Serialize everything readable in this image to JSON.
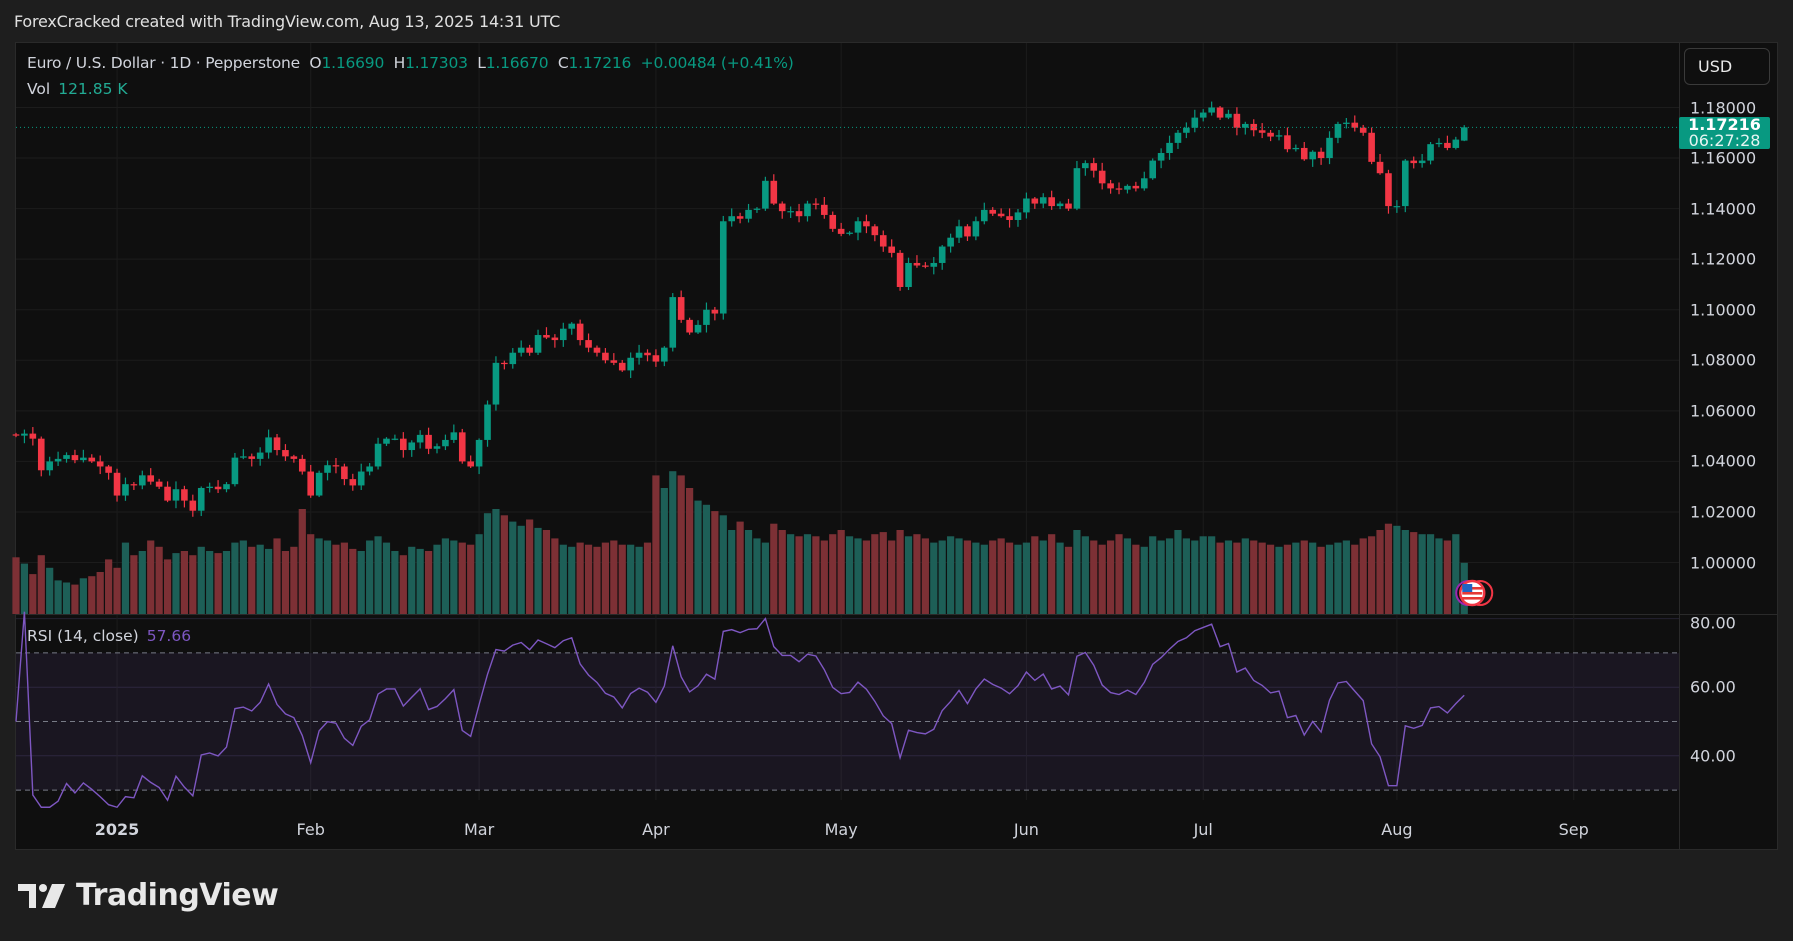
{
  "header": {
    "title": "ForexCracked created with TradingView.com, Aug 13, 2025 14:31 UTC"
  },
  "legend": {
    "symbol": "Euro / U.S. Dollar · 1D · Pepperstone",
    "o_label": "O",
    "o": "1.16690",
    "h_label": "H",
    "h": "1.17303",
    "l_label": "L",
    "l": "1.16670",
    "c_label": "C",
    "c": "1.17216",
    "change": "+0.00484 (+0.41%)",
    "vol_label": "Vol",
    "vol": "121.85 K"
  },
  "currency_button": "USD",
  "last_price": {
    "price": "1.17216",
    "countdown": "06:27:28"
  },
  "rsi": {
    "label": "RSI (14, close)",
    "value": "57.66",
    "length": 14,
    "upper": 70,
    "middle": 50,
    "lower": 30,
    "ticks": [
      "80.00",
      "60.00",
      "40.00"
    ]
  },
  "colors": {
    "up": "#089981",
    "down": "#f23645",
    "vol_up": "#1d5f57",
    "vol_down": "#7d3035",
    "rsi_line": "#7e57c2",
    "background": "#0f0f0f"
  },
  "event_icon": "us-flag-icon",
  "logo": {
    "text": "TradingView"
  },
  "chart_data": {
    "type": "candlestick",
    "symbol": "EURUSD",
    "interval": "1D",
    "y_ticks": [
      "1.18000",
      "1.16000",
      "1.14000",
      "1.12000",
      "1.10000",
      "1.08000",
      "1.06000",
      "1.04000",
      "1.02000",
      "1.00000"
    ],
    "ylim": [
      0.985,
      1.19
    ],
    "x_ticks": [
      {
        "label": "2025",
        "date": "2025-01-01"
      },
      {
        "label": "Feb",
        "date": "2025-02-03"
      },
      {
        "label": "Mar",
        "date": "2025-03-03"
      },
      {
        "label": "Apr",
        "date": "2025-04-01"
      },
      {
        "label": "May",
        "date": "2025-05-01"
      },
      {
        "label": "Jun",
        "date": "2025-06-02"
      },
      {
        "label": "Jul",
        "date": "2025-07-01"
      },
      {
        "label": "Aug",
        "date": "2025-08-01"
      },
      {
        "label": "Sep",
        "date": "2025-09-01"
      }
    ],
    "last_bar": {
      "open": 1.1669,
      "high": 1.17303,
      "low": 1.1667,
      "close": 1.17216
    },
    "close": [
      1.0502,
      1.051,
      1.049,
      1.0365,
      1.04,
      1.041,
      1.0425,
      1.0405,
      1.0415,
      1.04,
      1.038,
      1.0355,
      1.0265,
      1.031,
      1.0305,
      1.0345,
      1.032,
      1.03,
      1.0245,
      1.029,
      1.0245,
      1.0205,
      1.0295,
      1.03,
      1.029,
      1.031,
      1.0415,
      1.042,
      1.041,
      1.0435,
      1.0495,
      1.0445,
      1.042,
      1.041,
      1.036,
      1.0265,
      1.0355,
      1.0385,
      1.038,
      1.033,
      1.0305,
      1.036,
      1.038,
      1.047,
      1.049,
      1.049,
      1.0445,
      1.0475,
      1.0505,
      1.045,
      1.046,
      1.0485,
      1.0515,
      1.04,
      1.038,
      1.0485,
      1.0625,
      1.079,
      1.0785,
      1.083,
      1.085,
      1.083,
      1.09,
      1.089,
      1.088,
      1.0925,
      1.0945,
      1.088,
      1.085,
      1.083,
      1.08,
      1.079,
      1.076,
      1.081,
      1.083,
      1.082,
      1.0795,
      1.085,
      1.105,
      1.096,
      1.091,
      1.094,
      1.1,
      1.0985,
      1.135,
      1.137,
      1.136,
      1.1395,
      1.14,
      1.151,
      1.142,
      1.139,
      1.139,
      1.137,
      1.142,
      1.1415,
      1.1375,
      1.132,
      1.13,
      1.1305,
      1.135,
      1.133,
      1.1295,
      1.125,
      1.1225,
      1.109,
      1.1185,
      1.1175,
      1.117,
      1.1185,
      1.125,
      1.1285,
      1.133,
      1.129,
      1.135,
      1.1395,
      1.138,
      1.137,
      1.1355,
      1.1385,
      1.144,
      1.142,
      1.1445,
      1.141,
      1.142,
      1.14,
      1.156,
      1.158,
      1.155,
      1.15,
      1.148,
      1.1475,
      1.149,
      1.148,
      1.152,
      1.159,
      1.162,
      1.166,
      1.17,
      1.172,
      1.176,
      1.178,
      1.18,
      1.176,
      1.1775,
      1.172,
      1.1735,
      1.171,
      1.17,
      1.1685,
      1.169,
      1.1635,
      1.164,
      1.1595,
      1.1625,
      1.16,
      1.168,
      1.1735,
      1.174,
      1.172,
      1.17,
      1.1585,
      1.154,
      1.141,
      1.141,
      1.159,
      1.158,
      1.159,
      1.1655,
      1.166,
      1.164,
      1.1673,
      1.17216
    ],
    "volume_k": [
      135,
      120,
      95,
      140,
      110,
      80,
      75,
      70,
      85,
      90,
      100,
      130,
      110,
      170,
      140,
      150,
      175,
      160,
      130,
      145,
      150,
      140,
      160,
      150,
      145,
      150,
      170,
      175,
      160,
      165,
      155,
      180,
      150,
      160,
      250,
      190,
      180,
      175,
      165,
      170,
      155,
      150,
      175,
      185,
      170,
      150,
      140,
      160,
      155,
      150,
      165,
      180,
      175,
      170,
      165,
      190,
      240,
      250,
      235,
      220,
      210,
      225,
      205,
      200,
      180,
      165,
      160,
      170,
      165,
      160,
      170,
      175,
      165,
      165,
      160,
      170,
      330,
      300,
      340,
      330,
      300,
      270,
      260,
      245,
      235,
      200,
      220,
      200,
      180,
      170,
      215,
      200,
      190,
      185,
      190,
      185,
      175,
      190,
      200,
      185,
      180,
      175,
      190,
      195,
      175,
      200,
      185,
      190,
      180,
      170,
      175,
      185,
      180,
      175,
      170,
      165,
      175,
      180,
      170,
      165,
      170,
      185,
      175,
      190,
      170,
      160,
      200,
      185,
      175,
      165,
      175,
      190,
      180,
      165,
      160,
      185,
      175,
      180,
      200,
      180,
      175,
      185,
      185,
      170,
      175,
      170,
      180,
      175,
      170,
      165,
      160,
      165,
      170,
      175,
      170,
      160,
      165,
      170,
      175,
      165,
      180,
      185,
      200,
      215,
      210,
      200,
      195,
      190,
      190,
      180,
      175,
      190,
      121.85
    ]
  }
}
